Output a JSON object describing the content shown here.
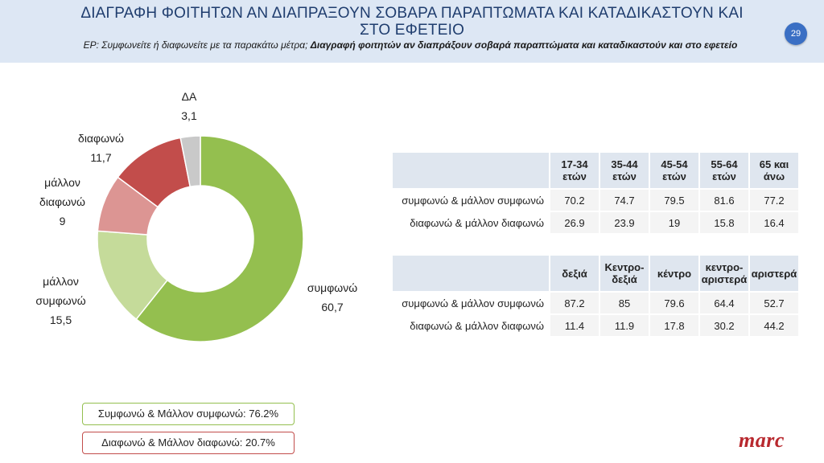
{
  "header": {
    "title_line1": "ΔΙΑΓΡΑΦΗ ΦΟΙΤΗΤΩΝ ΑΝ ΔΙΑΠΡΑΞΟΥΝ ΣΟΒΑΡΑ ΠΑΡΑΠΤΩΜΑΤΑ ΚΑΙ ΚΑΤΑΔΙΚΑΣΤΟΥΝ ΚΑΙ",
    "title_line2": "ΣΤΟ ΕΦΕΤΕΙΟ",
    "subtitle_plain": "ΕΡ:  Συμφωνείτε ή διαφωνείτε με τα παρακάτω μέτρα; ",
    "subtitle_bold": "Διαγραφή φοιτητών αν διαπράξουν σοβαρά παραπτώματα και καταδικαστούν και στο εφετείο",
    "page_number": "29"
  },
  "chart_data": [
    {
      "type": "pie",
      "variant": "donut",
      "slices": [
        {
          "label": "συμφωνώ",
          "value": 60.7,
          "value_text": "60,7",
          "color": "#94bf4f"
        },
        {
          "label": "μάλλον συμφωνώ",
          "value": 15.5,
          "value_text": "15,5",
          "color": "#c5db9a"
        },
        {
          "label": "μάλλον διαφωνώ",
          "value": 9,
          "value_text": "9",
          "color": "#dc9593"
        },
        {
          "label": "διαφωνώ",
          "value": 11.7,
          "value_text": "11,7",
          "color": "#c24d4b"
        },
        {
          "label": "ΔΑ",
          "value": 3.1,
          "value_text": "3,1",
          "color": "#c9c9c9"
        }
      ],
      "start": "top",
      "direction": "clockwise"
    },
    {
      "type": "table",
      "columns": [
        "17-34 ετών",
        "35-44 ετών",
        "45-54 ετών",
        "55-64 ετών",
        "65 και άνω"
      ],
      "rows": [
        {
          "label": "συμφωνώ & μάλλον συμφωνώ",
          "values": [
            "70.2",
            "74.7",
            "79.5",
            "81.6",
            "77.2"
          ]
        },
        {
          "label": "διαφωνώ & μάλλον διαφωνώ",
          "values": [
            "26.9",
            "23.9",
            "19",
            "15.8",
            "16.4"
          ]
        }
      ]
    },
    {
      "type": "table",
      "columns": [
        "δεξιά",
        "Κεντρο-δεξιά",
        "κέντρο",
        "κεντρο-αριστερά",
        "αριστερά"
      ],
      "rows": [
        {
          "label": "συμφωνώ & μάλλον συμφωνώ",
          "values": [
            "87.2",
            "85",
            "79.6",
            "64.4",
            "52.7"
          ]
        },
        {
          "label": "διαφωνώ & μάλλον διαφωνώ",
          "values": [
            "11.4",
            "11.9",
            "17.8",
            "30.2",
            "44.2"
          ]
        }
      ]
    }
  ],
  "summary": {
    "agree": {
      "text": "Συμφωνώ & Μάλλον συμφωνώ: 76.2%",
      "color": "#94bf4f"
    },
    "disagree": {
      "text": "Διαφωνώ & Μάλλον διαφωνώ: 20.7%",
      "color": "#c24d4b"
    }
  },
  "logo": {
    "text": "marc",
    "color": "#b8282e"
  }
}
